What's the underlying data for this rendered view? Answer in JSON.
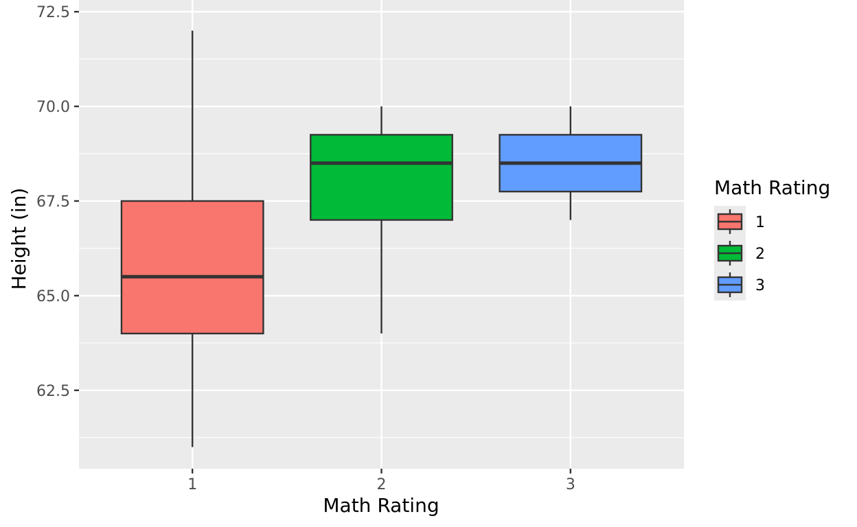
{
  "chart_data": {
    "type": "boxplot",
    "title": "",
    "xlabel": "Math Rating",
    "ylabel": "Height (in)",
    "categories": [
      "1",
      "2",
      "3"
    ],
    "ylim": [
      60.43,
      72.81
    ],
    "yticks": [
      "62.5",
      "65.0",
      "67.5",
      "70.0",
      "72.5"
    ],
    "ytick_values": [
      62.5,
      65.0,
      67.5,
      70.0,
      72.5
    ],
    "grid": true,
    "boxes": [
      {
        "category": "1",
        "min": 61.0,
        "q1": 64.0,
        "median": 65.5,
        "q3": 67.5,
        "max": 72.0,
        "color": "#F8766D"
      },
      {
        "category": "2",
        "min": 64.0,
        "q1": 67.0,
        "median": 68.5,
        "q3": 69.25,
        "max": 70.0,
        "color": "#00BA38"
      },
      {
        "category": "3",
        "min": 67.0,
        "q1": 67.75,
        "median": 68.5,
        "q3": 69.25,
        "max": 70.0,
        "color": "#619CFF"
      }
    ],
    "legend": {
      "title": "Math Rating",
      "placement": "right",
      "entries": [
        "1",
        "2",
        "3"
      ]
    }
  }
}
